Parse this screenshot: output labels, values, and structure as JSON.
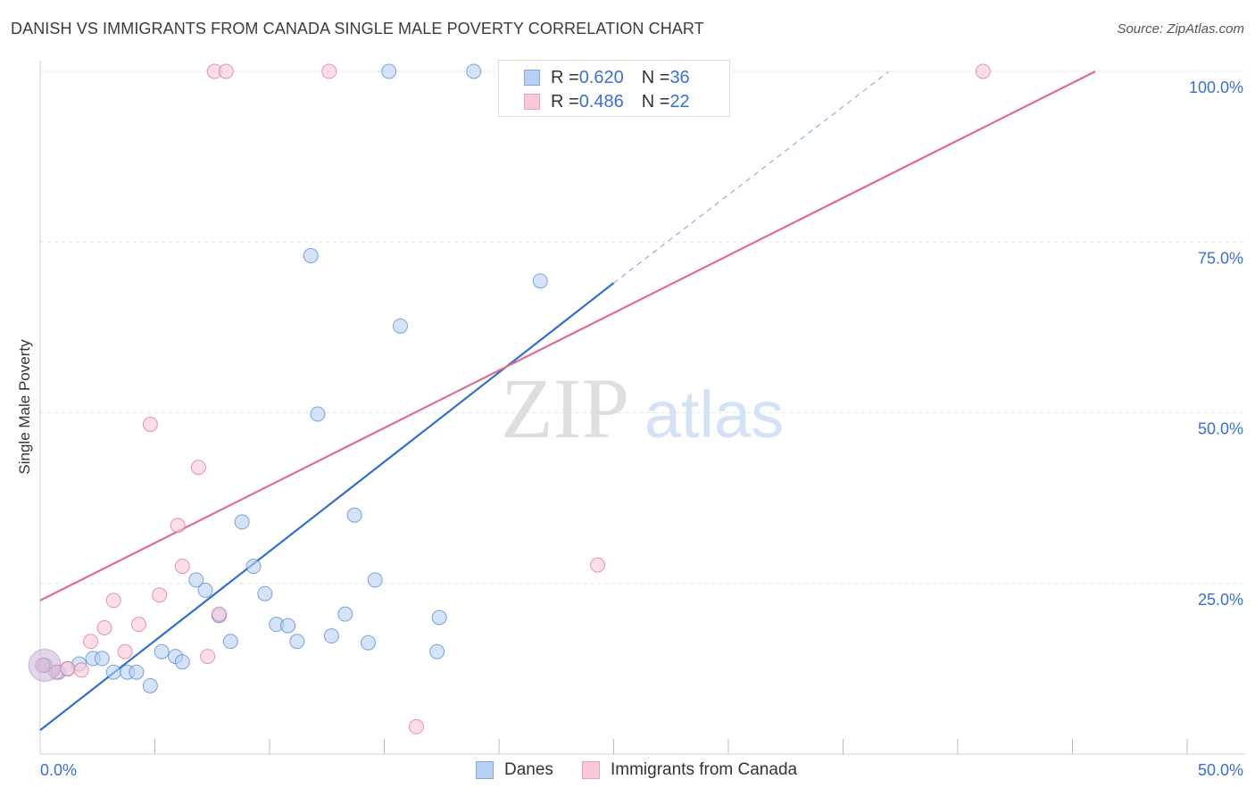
{
  "title": "DANISH VS IMMIGRANTS FROM CANADA SINGLE MALE POVERTY CORRELATION CHART",
  "source": "Source: ZipAtlas.com",
  "watermark": {
    "zip": "ZIP",
    "atlas": "atlas"
  },
  "legend_top": [
    {
      "r_label": "R = ",
      "r_value": "0.620",
      "n_label": "N = ",
      "n_value": "36"
    },
    {
      "r_label": "R = ",
      "r_value": "0.486",
      "n_label": "N = ",
      "n_value": "22"
    }
  ],
  "chart_data": {
    "type": "scatter",
    "title": "DANISH VS IMMIGRANTS FROM CANADA SINGLE MALE POVERTY CORRELATION CHART",
    "xlabel": "",
    "ylabel": "Single Male Poverty",
    "xlim": [
      0,
      50
    ],
    "ylim": [
      0,
      100
    ],
    "x_tick_labels": [
      "0.0%",
      "50.0%"
    ],
    "y_tick_labels": [
      "25.0%",
      "50.0%",
      "75.0%",
      "100.0%"
    ],
    "y_ticks": [
      25,
      50,
      75,
      100
    ],
    "grid": true,
    "legend_position": "bottom",
    "colors": {
      "danes": "#4a7fd4",
      "canada": "#e06a93",
      "danes_fill": "#b8d0f2",
      "canada_fill": "#f8c8d8",
      "axis_text": "#3a6fd6"
    },
    "series": [
      {
        "name": "Danes",
        "r": 0.62,
        "n": 36,
        "points": [
          [
            0.2,
            13.0
          ],
          [
            0.8,
            12.0
          ],
          [
            1.2,
            12.5
          ],
          [
            1.7,
            13.2
          ],
          [
            2.3,
            14.0
          ],
          [
            2.7,
            14.0
          ],
          [
            3.2,
            12.0
          ],
          [
            3.8,
            12.0
          ],
          [
            4.2,
            12.0
          ],
          [
            4.8,
            10.0
          ],
          [
            5.3,
            15.0
          ],
          [
            5.9,
            14.3
          ],
          [
            6.2,
            13.5
          ],
          [
            6.8,
            25.5
          ],
          [
            7.2,
            24.0
          ],
          [
            7.8,
            20.3
          ],
          [
            8.3,
            16.5
          ],
          [
            8.8,
            34.0
          ],
          [
            9.3,
            27.5
          ],
          [
            9.8,
            23.5
          ],
          [
            10.3,
            19.0
          ],
          [
            10.8,
            18.8
          ],
          [
            11.2,
            16.5
          ],
          [
            11.8,
            73.0
          ],
          [
            12.1,
            49.8
          ],
          [
            12.7,
            17.3
          ],
          [
            13.3,
            20.5
          ],
          [
            13.7,
            35.0
          ],
          [
            14.3,
            16.3
          ],
          [
            14.6,
            25.5
          ],
          [
            15.7,
            62.7
          ],
          [
            15.2,
            100.0
          ],
          [
            17.3,
            15.0
          ],
          [
            17.4,
            20.0
          ],
          [
            18.9,
            100.0
          ],
          [
            21.8,
            69.3
          ]
        ]
      },
      {
        "name": "Immigrants from Canada",
        "r": 0.486,
        "n": 22,
        "points": [
          [
            0.1,
            13.0
          ],
          [
            0.7,
            12.0
          ],
          [
            1.2,
            12.5
          ],
          [
            1.8,
            12.3
          ],
          [
            2.2,
            16.5
          ],
          [
            2.8,
            18.5
          ],
          [
            3.2,
            22.5
          ],
          [
            3.7,
            15.0
          ],
          [
            4.3,
            19.0
          ],
          [
            4.8,
            48.3
          ],
          [
            5.2,
            23.3
          ],
          [
            6.0,
            33.5
          ],
          [
            6.2,
            27.5
          ],
          [
            6.9,
            42.0
          ],
          [
            7.3,
            14.3
          ],
          [
            7.8,
            20.5
          ],
          [
            7.6,
            100.0
          ],
          [
            8.1,
            100.0
          ],
          [
            12.6,
            100.0
          ],
          [
            16.4,
            4.0
          ],
          [
            24.3,
            27.7
          ],
          [
            41.1,
            100.0
          ]
        ]
      }
    ],
    "trend_lines": [
      {
        "series": "Danes",
        "x": [
          0,
          25
        ],
        "y": [
          3.5,
          69
        ],
        "dashed_extension": {
          "x": [
            25,
            37
          ],
          "y": [
            69,
            100
          ]
        }
      },
      {
        "series": "Immigrants from Canada",
        "x": [
          0,
          46
        ],
        "y": [
          22.5,
          100
        ]
      }
    ]
  }
}
